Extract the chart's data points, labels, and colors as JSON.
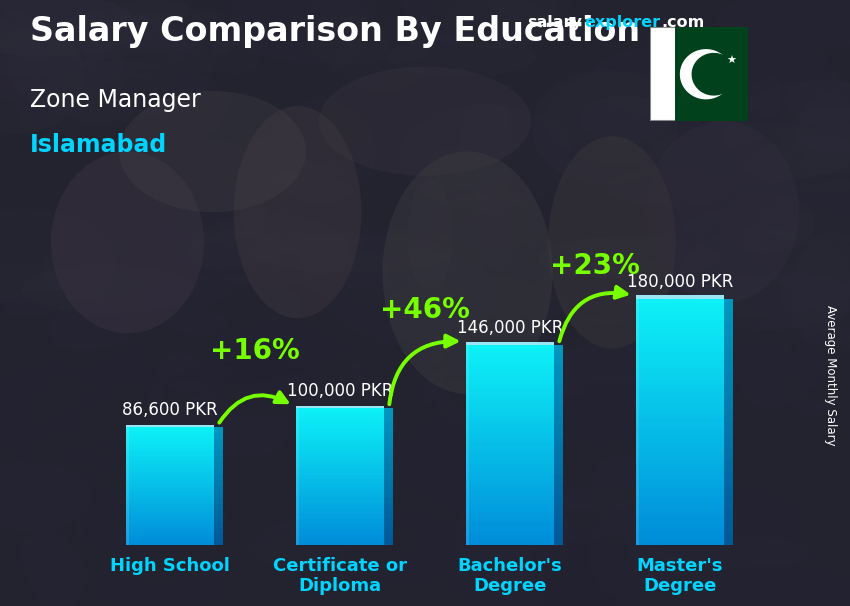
{
  "title_main": "Salary Comparison By Education",
  "subtitle1": "Zone Manager",
  "subtitle2": "Islamabad",
  "ylabel": "Average Monthly Salary",
  "categories": [
    "High School",
    "Certificate or\nDiploma",
    "Bachelor's\nDegree",
    "Master's\nDegree"
  ],
  "values": [
    86600,
    100000,
    146000,
    180000
  ],
  "value_labels": [
    "86,600 PKR",
    "100,000 PKR",
    "146,000 PKR",
    "180,000 PKR"
  ],
  "pct_labels": [
    "+16%",
    "+46%",
    "+23%"
  ],
  "bar_color_face": "#29d0f0",
  "bar_color_right": "#1890b0",
  "bar_color_top": "#80eeff",
  "bg_color": "#3a3a4a",
  "text_color_white": "#ffffff",
  "text_color_cyan": "#00d4ff",
  "text_color_green": "#77ff00",
  "arrow_color": "#77ff00",
  "title_fontsize": 24,
  "subtitle1_fontsize": 17,
  "subtitle2_fontsize": 17,
  "value_label_fontsize": 12,
  "pct_label_fontsize": 20,
  "cat_label_fontsize": 13,
  "bar_width": 0.52,
  "ylim": [
    0,
    230000
  ],
  "figsize": [
    8.5,
    6.06
  ],
  "dpi": 100,
  "website_text": "salaryexplorer.com",
  "website_salary": "salary",
  "website_explorer": "explorer",
  "website_com": ".com"
}
